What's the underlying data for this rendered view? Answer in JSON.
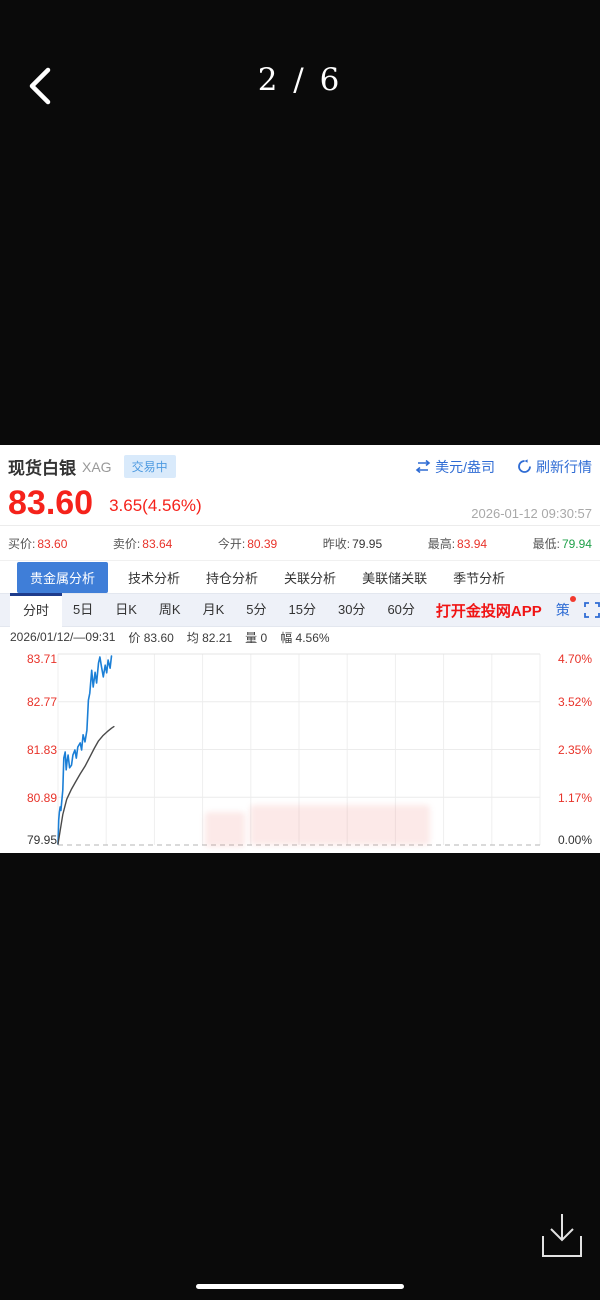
{
  "viewer": {
    "page_indicator": "2 / 6"
  },
  "quote_panel": {
    "name": "现货白银",
    "symbol": "XAG",
    "status_badge": "交易中",
    "unit_toggle": "美元/盎司",
    "refresh_label": "刷新行情",
    "price": "83.60",
    "change": "3.65(4.56%)",
    "timestamp": "2026-01-12 09:30:57",
    "stats": [
      {
        "label": "买价:",
        "value": "83.60"
      },
      {
        "label": "卖价:",
        "value": "83.64"
      },
      {
        "label": "今开:",
        "value": "80.39"
      },
      {
        "label": "昨收:",
        "value": "79.95"
      },
      {
        "label": "最高:",
        "value": "83.94"
      },
      {
        "label": "最低:",
        "value": "79.94"
      }
    ],
    "analysis_tabs": [
      {
        "label": "贵金属分析"
      },
      {
        "label": "技术分析"
      },
      {
        "label": "持仓分析"
      },
      {
        "label": "关联分析"
      },
      {
        "label": "美联储关联"
      },
      {
        "label": "季节分析"
      }
    ],
    "period_tabs": [
      {
        "label": "分时"
      },
      {
        "label": "5日"
      },
      {
        "label": "日K"
      },
      {
        "label": "周K"
      },
      {
        "label": "月K"
      },
      {
        "label": "5分"
      },
      {
        "label": "15分"
      },
      {
        "label": "30分"
      },
      {
        "label": "60分"
      }
    ],
    "app_link": "打开金投网APP",
    "strategy_button": "策",
    "readout": [
      "2026/01/12/—09:31",
      "价 83.60",
      "均 82.21",
      "量 0",
      "幅 4.56%"
    ]
  },
  "chart_data": {
    "type": "line",
    "title": "分时 (intraday minute chart)",
    "y_left_labels": [
      "83.71",
      "82.77",
      "81.83",
      "80.89",
      "79.95"
    ],
    "y_right_labels": [
      "4.70%",
      "3.52%",
      "2.35%",
      "1.17%",
      "0.00%"
    ],
    "y_min": 79.95,
    "y_max": 83.71,
    "x_range_pct": [
      0,
      100
    ],
    "grid": {
      "v_divisions": 10,
      "h_levels": [
        83.71,
        82.77,
        81.83,
        80.89,
        79.95
      ]
    },
    "legend_position": "none",
    "series": [
      {
        "name": "价",
        "color": "#1b7fd6",
        "width": 1.6,
        "points": [
          [
            0,
            79.97
          ],
          [
            0.15,
            80.44
          ],
          [
            0.3,
            80.6
          ],
          [
            0.45,
            80.7
          ],
          [
            0.6,
            80.63
          ],
          [
            1.0,
            81.03
          ],
          [
            1.2,
            81.66
          ],
          [
            1.5,
            81.78
          ],
          [
            1.7,
            81.43
          ],
          [
            1.9,
            81.62
          ],
          [
            2.1,
            81.72
          ],
          [
            2.4,
            81.47
          ],
          [
            2.8,
            81.52
          ],
          [
            3.1,
            81.72
          ],
          [
            3.5,
            81.82
          ],
          [
            3.8,
            81.66
          ],
          [
            4.1,
            81.88
          ],
          [
            4.6,
            81.96
          ],
          [
            4.9,
            81.82
          ],
          [
            5.2,
            82.12
          ],
          [
            5.6,
            81.98
          ],
          [
            6.0,
            82.21
          ],
          [
            6.3,
            82.8
          ],
          [
            6.6,
            82.94
          ],
          [
            7.0,
            83.39
          ],
          [
            7.3,
            83.06
          ],
          [
            7.7,
            83.35
          ],
          [
            8.0,
            83.14
          ],
          [
            8.4,
            83.53
          ],
          [
            8.7,
            83.65
          ],
          [
            9.0,
            83.47
          ],
          [
            9.4,
            83.26
          ],
          [
            9.8,
            83.49
          ],
          [
            10.1,
            83.34
          ],
          [
            10.4,
            83.59
          ],
          [
            10.8,
            83.43
          ],
          [
            11.1,
            83.67
          ]
        ]
      },
      {
        "name": "均",
        "color": "#4a4a4a",
        "width": 1.4,
        "points": [
          [
            0,
            79.97
          ],
          [
            0.4,
            80.2
          ],
          [
            1.0,
            80.55
          ],
          [
            1.8,
            80.85
          ],
          [
            2.8,
            81.05
          ],
          [
            3.7,
            81.2
          ],
          [
            4.6,
            81.35
          ],
          [
            5.6,
            81.5
          ],
          [
            6.6,
            81.68
          ],
          [
            7.5,
            81.85
          ],
          [
            8.4,
            82.0
          ],
          [
            9.3,
            82.1
          ],
          [
            10.2,
            82.18
          ],
          [
            11.1,
            82.25
          ],
          [
            11.6,
            82.28
          ]
        ]
      }
    ]
  },
  "colors": {
    "price_red": "#f5221b",
    "value_red": "#e8332a",
    "value_green": "#1fa049",
    "accent_blue": "#2f6cd4",
    "active_tab_blue": "#3f7ed8",
    "period_tab_indicator": "#1e3c8c",
    "line_blue": "#1b7fd6",
    "avg_line_gray": "#4a4a4a",
    "app_link_red": "#f01414"
  }
}
